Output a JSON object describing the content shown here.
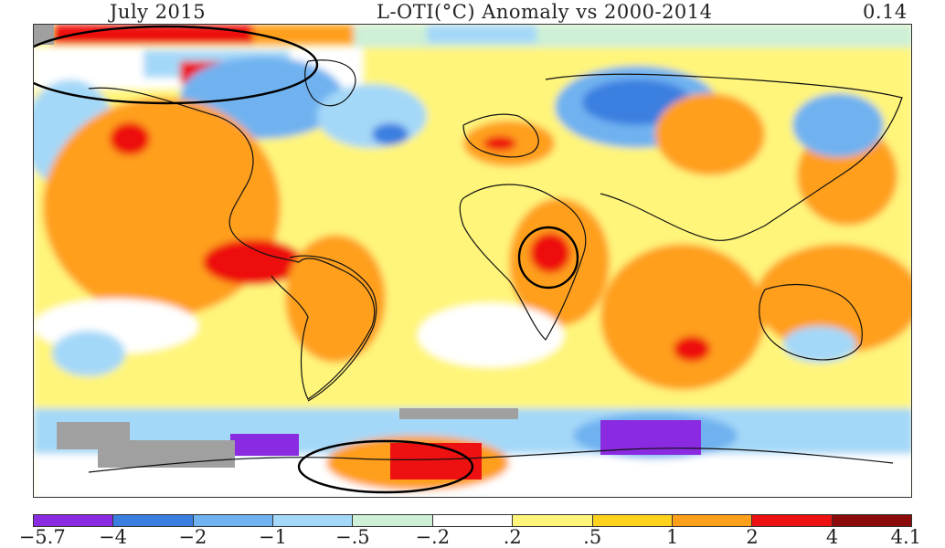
{
  "header": {
    "left": "July 2015",
    "center": "L-OTI(°C) Anomaly vs 2000-2014",
    "right": "0.14"
  },
  "legend": {
    "ticks": [
      "-5.7",
      "-4",
      "-2",
      "-1",
      "-.5",
      "-.2",
      ".2",
      ".5",
      "1",
      "2",
      "4",
      "4.1"
    ],
    "colors": [
      "#8a2be2",
      "#3a7fe0",
      "#6fb2f0",
      "#a4d8f8",
      "#cdf0d6",
      "#ffffff",
      "#fff57a",
      "#ffd21e",
      "#ff9f1a",
      "#ee1111",
      "#8b0b0b"
    ]
  },
  "map": {
    "no_data_color": "#a0a0a0",
    "coastline_color": "#111111",
    "annotation_color": "#000000"
  }
}
